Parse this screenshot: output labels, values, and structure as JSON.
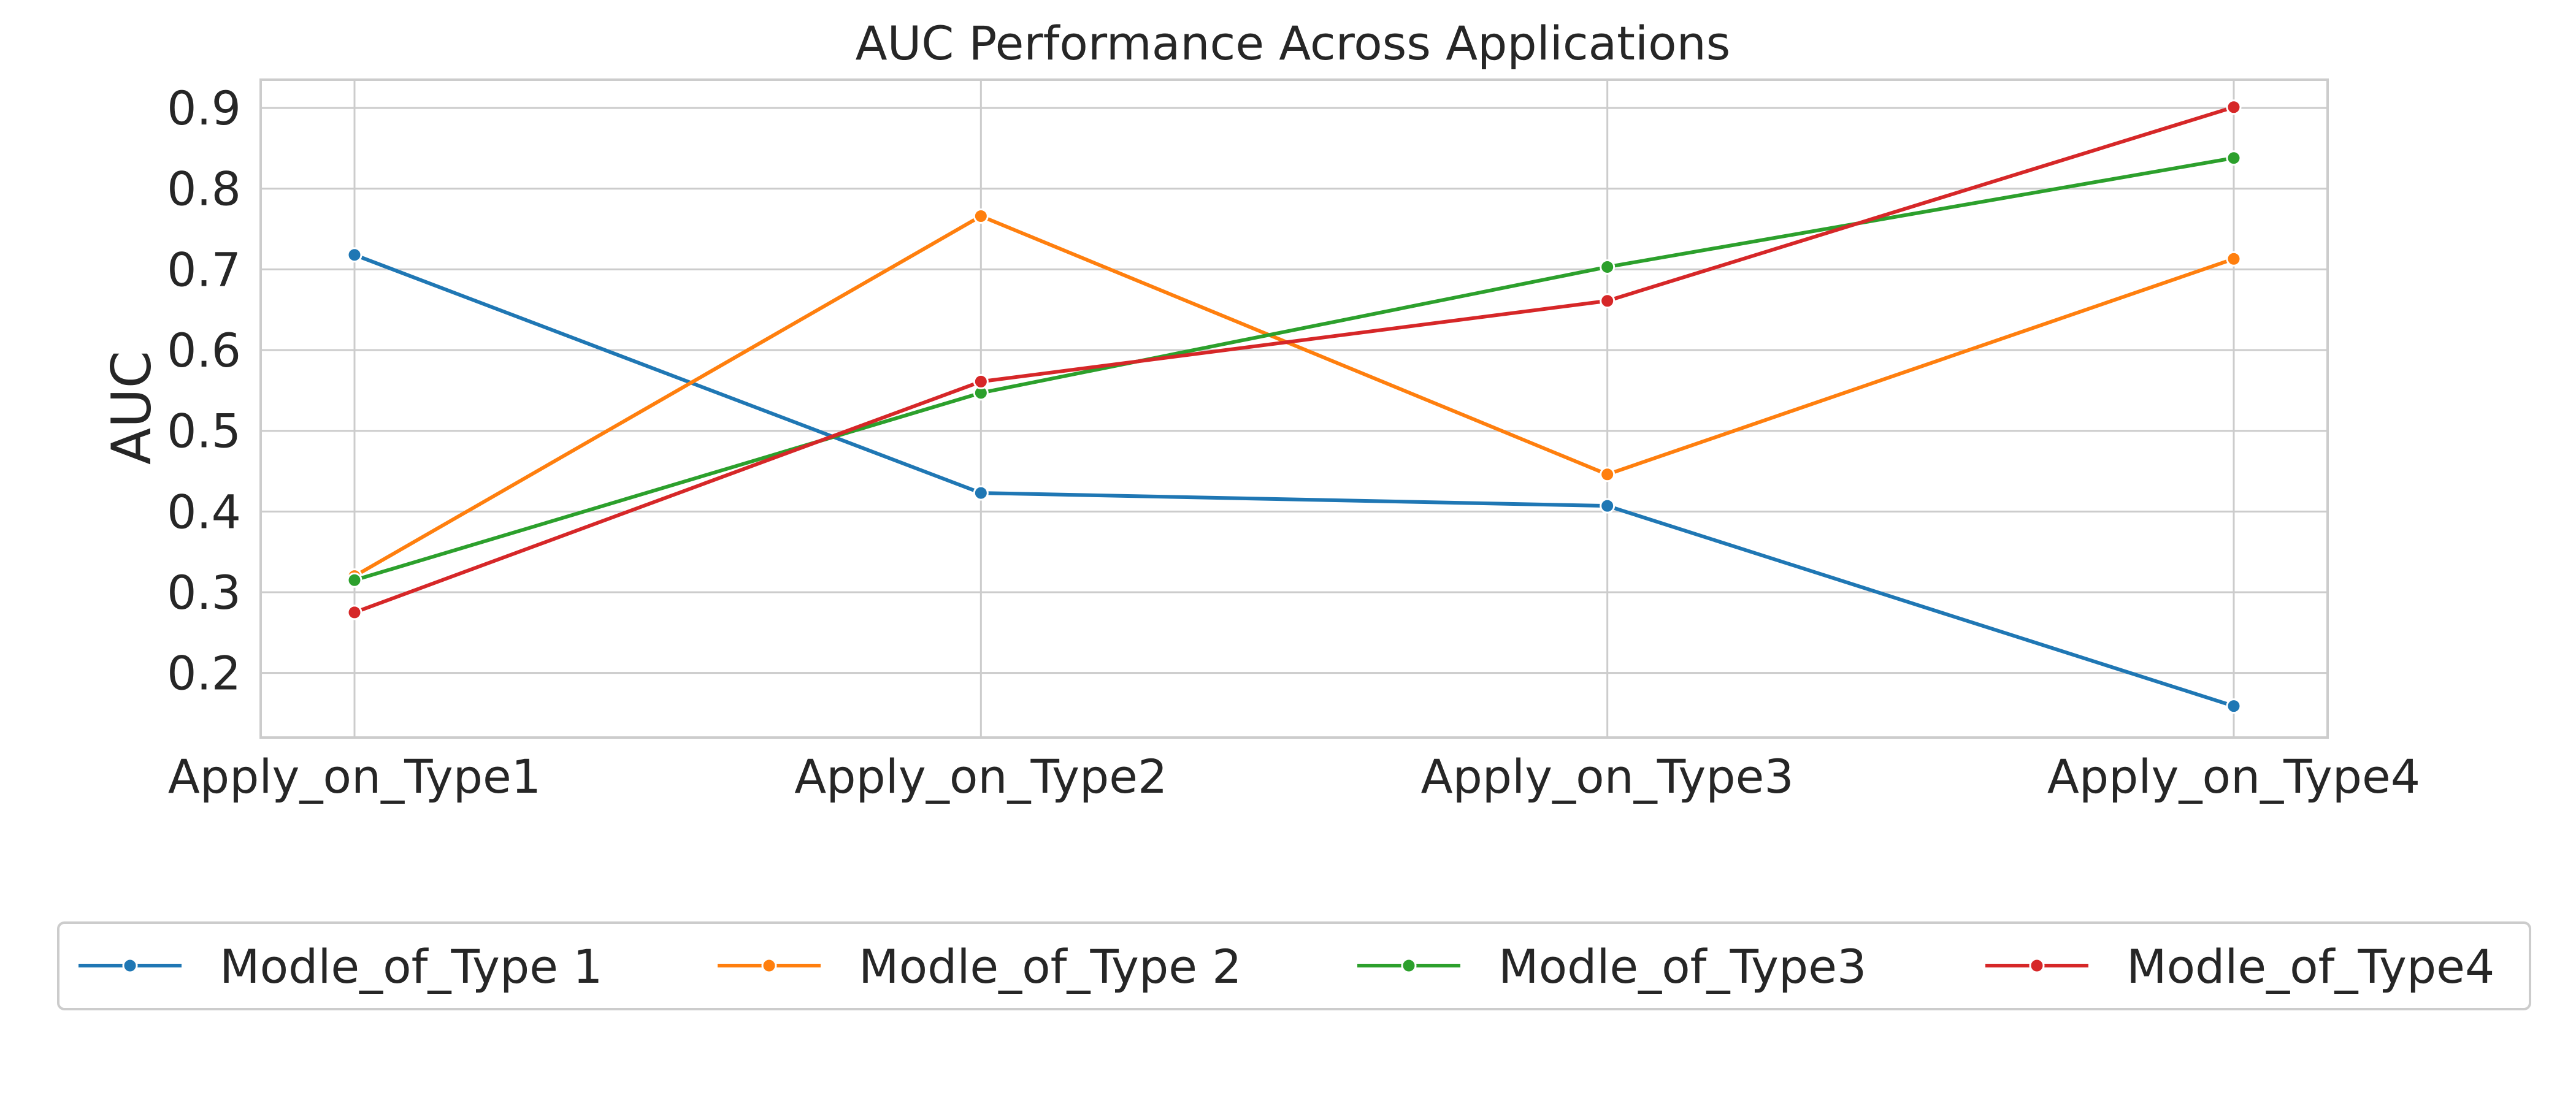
{
  "chart_data": {
    "type": "line",
    "title": "AUC Performance Across Applications",
    "xlabel": "",
    "ylabel": "AUC",
    "categories": [
      "Apply_on_Type1",
      "Apply_on_Type2",
      "Apply_on_Type3",
      "Apply_on_Type4"
    ],
    "ylim": [
      0.12,
      0.935
    ],
    "yticks": [
      0.2,
      0.3,
      0.4,
      0.5,
      0.6,
      0.7,
      0.8,
      0.9
    ],
    "ytick_labels": [
      "0.2",
      "0.3",
      "0.4",
      "0.5",
      "0.6",
      "0.7",
      "0.8",
      "0.9"
    ],
    "grid": true,
    "legend_position": "bottom-center",
    "series": [
      {
        "name": "Modle_of_Type 1",
        "color": "#1f77b4",
        "values": [
          0.718,
          0.423,
          0.407,
          0.159
        ]
      },
      {
        "name": "Modle_of_Type 2",
        "color": "#ff7f0e",
        "values": [
          0.32,
          0.766,
          0.446,
          0.713
        ]
      },
      {
        "name": "Modle_of_Type3",
        "color": "#2ca02c",
        "values": [
          0.315,
          0.547,
          0.703,
          0.838
        ]
      },
      {
        "name": "Modle_of_Type4",
        "color": "#d62728",
        "values": [
          0.275,
          0.561,
          0.661,
          0.901
        ]
      }
    ]
  }
}
